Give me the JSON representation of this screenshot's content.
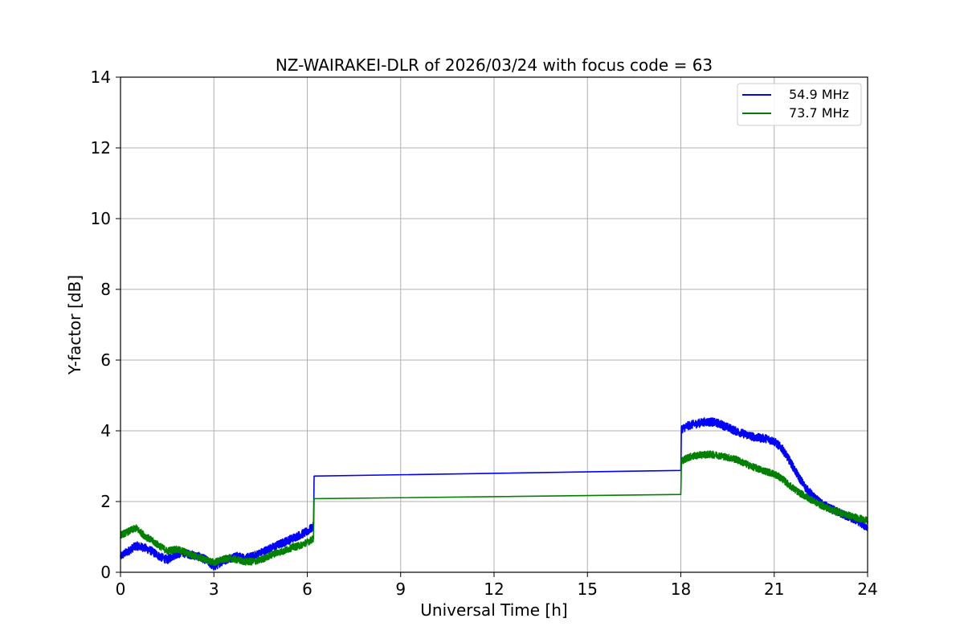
{
  "chart_data": {
    "type": "line",
    "title": "NZ-WAIRAKEI-DLR of 2026/03/24 with focus code = 63",
    "xlabel": "Universal Time [h]",
    "ylabel": "Y-factor [dB]",
    "xlim": [
      0,
      24
    ],
    "ylim": [
      0,
      14
    ],
    "xticks": [
      0,
      3,
      6,
      9,
      12,
      15,
      18,
      21,
      24
    ],
    "yticks": [
      0,
      2,
      4,
      6,
      8,
      10,
      12,
      14
    ],
    "grid": true,
    "legend_position": "top-right",
    "series": [
      {
        "name": "54.9 MHz",
        "color": "#0000ff",
        "noise": 0.12,
        "points": [
          [
            0.0,
            0.45
          ],
          [
            0.25,
            0.6
          ],
          [
            0.5,
            0.75
          ],
          [
            0.75,
            0.7
          ],
          [
            1.0,
            0.6
          ],
          [
            1.25,
            0.45
          ],
          [
            1.5,
            0.35
          ],
          [
            1.75,
            0.5
          ],
          [
            2.0,
            0.55
          ],
          [
            2.25,
            0.5
          ],
          [
            2.5,
            0.45
          ],
          [
            2.75,
            0.35
          ],
          [
            3.0,
            0.15
          ],
          [
            3.25,
            0.3
          ],
          [
            3.5,
            0.4
          ],
          [
            3.75,
            0.45
          ],
          [
            4.0,
            0.4
          ],
          [
            4.25,
            0.45
          ],
          [
            4.5,
            0.55
          ],
          [
            4.75,
            0.65
          ],
          [
            5.0,
            0.75
          ],
          [
            5.25,
            0.85
          ],
          [
            5.5,
            0.95
          ],
          [
            5.75,
            1.05
          ],
          [
            6.0,
            1.15
          ],
          [
            6.2,
            1.3
          ],
          [
            6.22,
            2.72
          ],
          [
            18.0,
            2.88
          ],
          [
            18.02,
            4.05
          ],
          [
            18.25,
            4.15
          ],
          [
            18.5,
            4.2
          ],
          [
            18.75,
            4.25
          ],
          [
            19.0,
            4.25
          ],
          [
            19.25,
            4.2
          ],
          [
            19.5,
            4.1
          ],
          [
            19.75,
            4.0
          ],
          [
            20.0,
            3.92
          ],
          [
            20.25,
            3.85
          ],
          [
            20.5,
            3.8
          ],
          [
            20.75,
            3.78
          ],
          [
            21.0,
            3.7
          ],
          [
            21.25,
            3.5
          ],
          [
            21.5,
            3.15
          ],
          [
            21.75,
            2.75
          ],
          [
            22.0,
            2.4
          ],
          [
            22.25,
            2.15
          ],
          [
            22.5,
            1.95
          ],
          [
            22.75,
            1.82
          ],
          [
            23.0,
            1.72
          ],
          [
            23.25,
            1.62
          ],
          [
            23.5,
            1.52
          ],
          [
            23.75,
            1.42
          ],
          [
            24.0,
            1.25
          ]
        ]
      },
      {
        "name": "73.7 MHz",
        "color": "#008000",
        "noise": 0.1,
        "points": [
          [
            0.0,
            1.05
          ],
          [
            0.25,
            1.15
          ],
          [
            0.5,
            1.25
          ],
          [
            0.75,
            1.05
          ],
          [
            1.0,
            0.9
          ],
          [
            1.25,
            0.75
          ],
          [
            1.5,
            0.6
          ],
          [
            1.75,
            0.65
          ],
          [
            2.0,
            0.6
          ],
          [
            2.25,
            0.5
          ],
          [
            2.5,
            0.42
          ],
          [
            2.75,
            0.35
          ],
          [
            3.0,
            0.28
          ],
          [
            3.25,
            0.35
          ],
          [
            3.5,
            0.4
          ],
          [
            3.75,
            0.35
          ],
          [
            4.0,
            0.3
          ],
          [
            4.25,
            0.3
          ],
          [
            4.5,
            0.35
          ],
          [
            4.75,
            0.45
          ],
          [
            5.0,
            0.55
          ],
          [
            5.25,
            0.6
          ],
          [
            5.5,
            0.7
          ],
          [
            5.75,
            0.75
          ],
          [
            6.0,
            0.85
          ],
          [
            6.2,
            0.95
          ],
          [
            6.22,
            2.08
          ],
          [
            18.0,
            2.2
          ],
          [
            18.02,
            3.15
          ],
          [
            18.25,
            3.25
          ],
          [
            18.5,
            3.3
          ],
          [
            18.75,
            3.33
          ],
          [
            19.0,
            3.33
          ],
          [
            19.25,
            3.3
          ],
          [
            19.5,
            3.25
          ],
          [
            19.75,
            3.2
          ],
          [
            20.0,
            3.1
          ],
          [
            20.25,
            3.0
          ],
          [
            20.5,
            2.92
          ],
          [
            20.75,
            2.85
          ],
          [
            21.0,
            2.78
          ],
          [
            21.25,
            2.65
          ],
          [
            21.5,
            2.45
          ],
          [
            21.75,
            2.28
          ],
          [
            22.0,
            2.15
          ],
          [
            22.25,
            2.02
          ],
          [
            22.5,
            1.9
          ],
          [
            22.75,
            1.8
          ],
          [
            23.0,
            1.72
          ],
          [
            23.25,
            1.65
          ],
          [
            23.5,
            1.58
          ],
          [
            23.75,
            1.52
          ],
          [
            24.0,
            1.45
          ]
        ]
      }
    ]
  }
}
